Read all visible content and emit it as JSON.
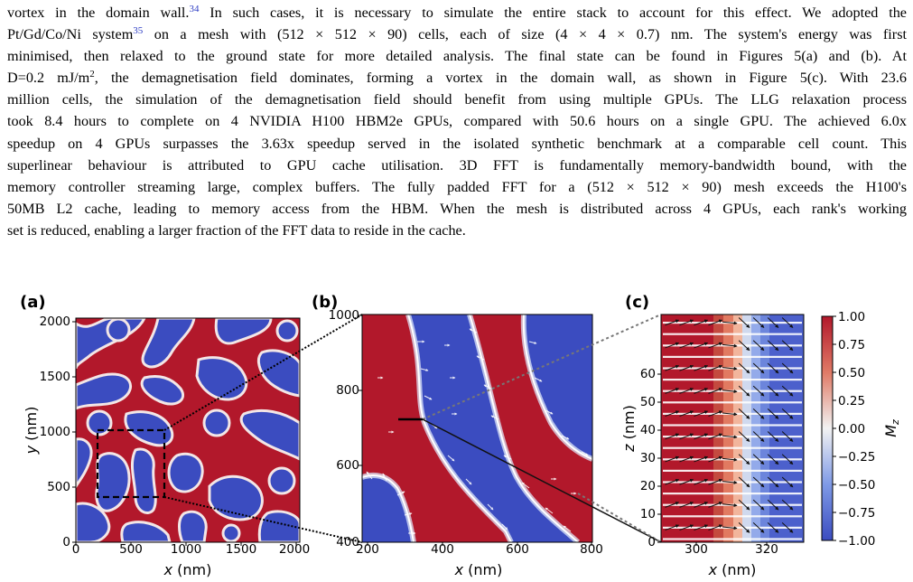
{
  "text": {
    "lines": [
      [
        "vortex in the domain wall.",
        "34",
        " In such cases, it is necessary to simulate the entire stack to account for this effect. We adopted the"
      ],
      [
        "Pt/Gd/Co/Ni system",
        "35",
        " on a mesh with (512 × 512 × 90) cells, each of size (4 × 4 × 0.7) nm. The system's energy was first"
      ],
      [
        "minimised, then relaxed to the ground state for more detailed analysis. The final state can be found in Figures 5(a) and (b). At"
      ],
      [
        "D=0.2 mJ/m",
        "2",
        ", the demagnetisation field dominates, forming a vortex in the domain wall, as shown in Figure 5(c). With 23.6"
      ],
      [
        "million cells, the simulation of the demagnetisation field should benefit from using multiple GPUs. The LLG relaxation process"
      ],
      [
        "took 8.4 hours to complete on 4 NVIDIA H100 HBM2e GPUs, compared with 50.6 hours on a single GPU. The achieved 6.0x"
      ],
      [
        "speedup on 4 GPUs surpasses the 3.63x speedup served in the isolated synthetic benchmark at a comparable cell count. This"
      ],
      [
        "superlinear behaviour is attributed to GPU cache utilisation. 3D FFT is fundamentally memory-bandwidth bound, with the"
      ],
      [
        "memory controller streaming large, complex buffers. The fully padded FFT for a (512 × 512 × 90) mesh exceeds the H100's"
      ],
      [
        "50MB L2 cache, leading to memory access from the HBM. When the mesh is distributed across 4 GPUs, each rank's working"
      ],
      [
        "set is reduced, enabling a larger fraction of the FFT data to reside in the cache."
      ]
    ]
  },
  "figure": {
    "panels": [
      {
        "label": "(a)",
        "xlabel_var": "x",
        "xlabel_unit": " (nm)",
        "ylabel_var": "y",
        "ylabel_unit": " (nm)",
        "xticks": [
          "0",
          "500",
          "1000",
          "1500",
          "2000"
        ],
        "yticks": [
          "0",
          "500",
          "1000",
          "1500",
          "2000"
        ]
      },
      {
        "label": "(b)",
        "xlabel_var": "x",
        "xlabel_unit": " (nm)",
        "xticks": [
          "200",
          "400",
          "600",
          "800"
        ],
        "yticks": [
          "400",
          "600",
          "800",
          "1000"
        ]
      },
      {
        "label": "(c)",
        "xlabel_var": "x",
        "xlabel_unit": " (nm)",
        "ylabel_var": "z",
        "ylabel_unit": " (nm)",
        "xticks": [
          "300",
          "320"
        ],
        "yticks": [
          "0",
          "10",
          "20",
          "30",
          "40",
          "50",
          "60"
        ]
      }
    ],
    "colorbar": {
      "label": "M",
      "label_sub": "z",
      "ticks": [
        "1.00",
        "0.75",
        "0.50",
        "0.25",
        "0.00",
        "−0.25",
        "−0.50",
        "−0.75",
        "−1.00"
      ],
      "colors": {
        "positive": "#b2182b",
        "neutral": "#f2f2f2",
        "negative": "#3b4cc0"
      }
    }
  }
}
